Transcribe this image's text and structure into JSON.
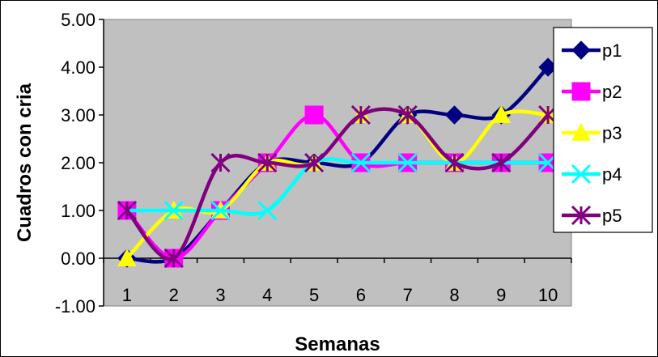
{
  "chart_data": {
    "type": "line",
    "title": "",
    "xlabel": "Semanas",
    "ylabel": "Cuadros con cria",
    "categories": [
      "1",
      "2",
      "3",
      "4",
      "5",
      "6",
      "7",
      "8",
      "9",
      "10"
    ],
    "yticks": [
      "-1.00",
      "0.00",
      "1.00",
      "2.00",
      "3.00",
      "4.00",
      "5.00"
    ],
    "ylim": [
      -1,
      5
    ],
    "grid": false,
    "plot_background": "#c0c0c0",
    "legend_position": "right",
    "series": [
      {
        "name": "p1",
        "color": "#000080",
        "marker": "diamond",
        "values": [
          0,
          0,
          1,
          2,
          2,
          2,
          3,
          3,
          3,
          4
        ]
      },
      {
        "name": "p2",
        "color": "#ff00ff",
        "marker": "square",
        "values": [
          1,
          0,
          1,
          2,
          3,
          2,
          2,
          2,
          2,
          2
        ]
      },
      {
        "name": "p3",
        "color": "#ffff00",
        "marker": "triangle",
        "values": [
          0,
          1,
          1,
          2,
          2,
          3,
          3,
          2,
          3,
          3
        ]
      },
      {
        "name": "p4",
        "color": "#00ffff",
        "marker": "x",
        "values": [
          1,
          1,
          1,
          1,
          2,
          2,
          2,
          2,
          2,
          2
        ]
      },
      {
        "name": "p5",
        "color": "#800080",
        "marker": "star",
        "values": [
          1,
          0,
          2,
          2,
          2,
          3,
          3,
          2,
          2,
          3
        ]
      }
    ]
  }
}
